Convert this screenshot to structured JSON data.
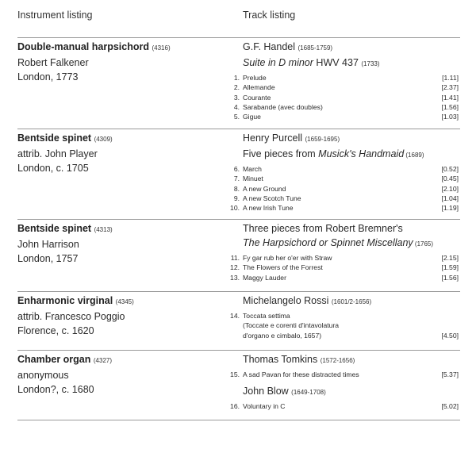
{
  "header": {
    "instrument_label": "Instrument listing",
    "track_label": "Track listing"
  },
  "sections": [
    {
      "instrument": {
        "name": "Double-manual harpsichord",
        "number": "(4316)",
        "maker": "Robert Falkener",
        "place": "London, 1773"
      },
      "groups": [
        {
          "composer": "G.F. Handel",
          "dates": "(1685-1759)",
          "work": [
            {
              "text": "Suite in D minor",
              "italic": true
            },
            {
              "text": " HWV 437 ",
              "italic": false
            }
          ],
          "work_date": "(1733)",
          "tracks": [
            {
              "num": "1.",
              "title": "Prelude",
              "dur": "[1.11]"
            },
            {
              "num": "2.",
              "title": "Allemande",
              "dur": "[2.37]"
            },
            {
              "num": "3.",
              "title": "Courante",
              "dur": "[1.41]"
            },
            {
              "num": "4.",
              "title": "Sarabande (avec doubles)",
              "dur": "[1.56]"
            },
            {
              "num": "5.",
              "title": "Gigue",
              "dur": "[1.03]"
            }
          ]
        }
      ]
    },
    {
      "instrument": {
        "name": "Bentside spinet",
        "number": "(4309)",
        "maker": "attrib. John Player",
        "place": "London, c. 1705"
      },
      "groups": [
        {
          "composer": "Henry Purcell",
          "dates": "(1659-1695)",
          "work": [
            {
              "text": "Five pieces from ",
              "italic": false
            },
            {
              "text": "Musick's Handmaid",
              "italic": true
            }
          ],
          "work_date": " (1689)",
          "tracks": [
            {
              "num": "6.",
              "title": "March",
              "dur": "[0.52]"
            },
            {
              "num": "7.",
              "title": "Minuet",
              "dur": "[0.45]"
            },
            {
              "num": "8.",
              "title": "A new Ground",
              "dur": "[2.10]"
            },
            {
              "num": "9.",
              "title": "A new Scotch Tune",
              "dur": "[1.04]"
            },
            {
              "num": "10.",
              "title": "A new Irish Tune",
              "dur": "[1.19]"
            }
          ]
        }
      ]
    },
    {
      "instrument": {
        "name": "Bentside spinet",
        "number": "(4313)",
        "maker": "John Harrison",
        "place": "London, 1757"
      },
      "groups": [
        {
          "composer": "Three pieces from Robert Bremner's",
          "dates": "",
          "work": [
            {
              "text": "The Harpsichord or Spinnet Miscellany",
              "italic": true
            }
          ],
          "work_date": " (1765)",
          "tracks": [
            {
              "num": "11.",
              "title": "Fy gar rub her o'er with Straw",
              "dur": "[2.15]"
            },
            {
              "num": "12.",
              "title": "The Flowers of the Forrest",
              "dur": "[1.59]"
            },
            {
              "num": "13.",
              "title": "Maggy Lauder",
              "dur": "[1.56]"
            }
          ]
        }
      ]
    },
    {
      "instrument": {
        "name": "Enharmonic virginal",
        "number": "(4345)",
        "maker": "attrib. Francesco Poggio",
        "place": "Florence, c. 1620"
      },
      "groups": [
        {
          "composer": "Michelangelo Rossi",
          "dates": "(1601/2-1656)",
          "tracks": [
            {
              "num": "14.",
              "title": "Toccata settima",
              "dur": ""
            },
            {
              "num": "",
              "title": "(Toccate e corenti d'intavolatura",
              "dur": ""
            },
            {
              "num": "",
              "title": "d'organo e cimbalo, 1657)",
              "dur": "[4.50]"
            }
          ]
        }
      ]
    },
    {
      "instrument": {
        "name": "Chamber organ",
        "number": "(4327)",
        "maker": "anonymous",
        "place": "London?, c. 1680"
      },
      "groups": [
        {
          "composer": "Thomas Tomkins",
          "dates": "(1572-1656)",
          "tracks": [
            {
              "num": "15.",
              "title": "A sad Pavan for these distracted times",
              "dur": "[5.37]"
            }
          ]
        },
        {
          "composer": "John Blow",
          "dates": "(1649-1708)",
          "tracks": [
            {
              "num": "16.",
              "title": "Voluntary in C",
              "dur": "[5.02]"
            }
          ]
        }
      ]
    }
  ]
}
